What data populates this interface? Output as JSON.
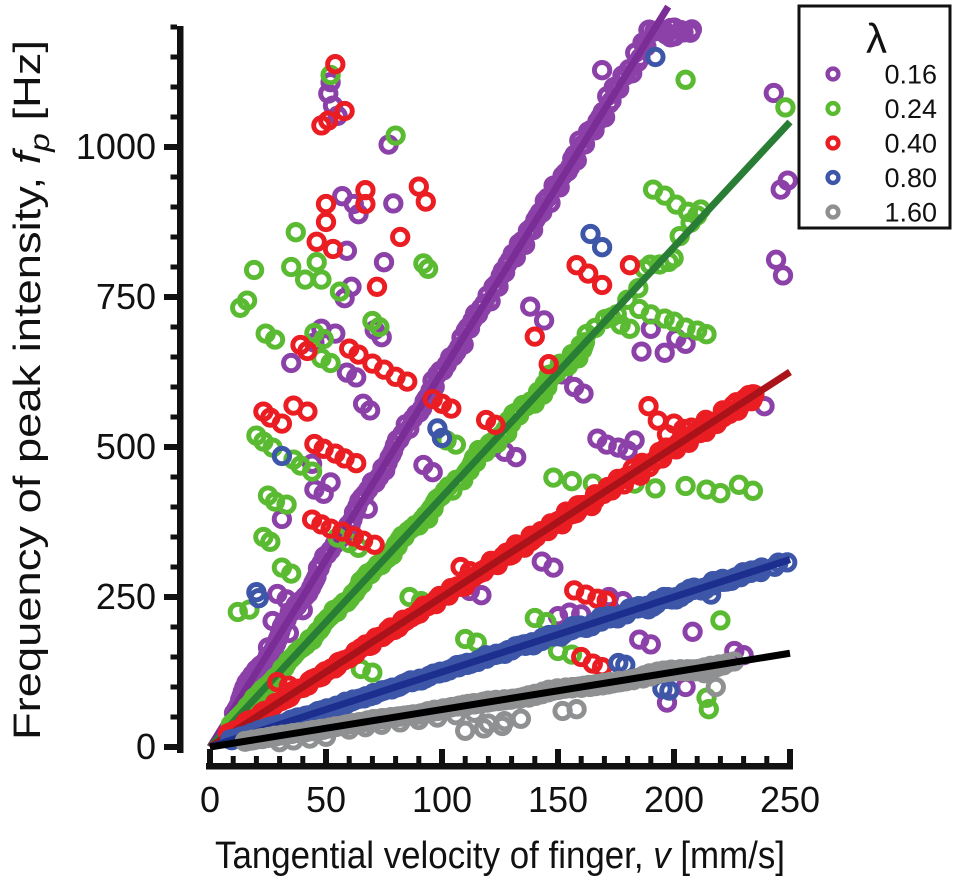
{
  "figure": {
    "background": "#ffffff",
    "text_color": "#111111",
    "axis_color": "#111111"
  },
  "chart_data": {
    "type": "scatter",
    "title": "",
    "xlabel": "Tangential velocity of finger, v [mm/s]",
    "ylabel": "Frequency of peak intensity, fp [Hz]",
    "xlabel_parts": [
      {
        "t": "Tangential velocity of finger, "
      },
      {
        "t": "v",
        "i": true
      },
      {
        "t": " [mm/s]"
      }
    ],
    "ylabel_parts": [
      {
        "t": "Frequency of peak intensity, "
      },
      {
        "t": "f",
        "i": true
      },
      {
        "t": "p",
        "i": true,
        "sub": true
      },
      {
        "t": " [Hz]"
      }
    ],
    "x_axis": {
      "range": [
        0,
        250
      ],
      "major_ticks": [
        0,
        50,
        100,
        150,
        200,
        250
      ],
      "minor_step": 10,
      "grid": false
    },
    "y_axis": {
      "range": [
        0,
        1200
      ],
      "major_ticks": [
        0,
        250,
        500,
        750,
        1000
      ],
      "minor_step": 50,
      "grid": false
    },
    "legend": {
      "title": "λ",
      "position": "top-right",
      "labels": [
        "0.16",
        "0.24",
        "0.40",
        "0.80",
        "1.60"
      ]
    },
    "relationship": "fp = v / lambda (fit lines through origin)",
    "series": [
      {
        "name": "0.16",
        "lambda": 0.16,
        "slope": 6.25,
        "marker_color": "#8B41A8",
        "line_color": "#7A2D96",
        "fit_line": {
          "v0": 0,
          "f0": 0,
          "v1": 197.5,
          "f1": 1234
        },
        "trend_segments": [
          {
            "v0": 9,
            "v1": 190,
            "step": 1.15,
            "spread": 0.011
          },
          {
            "v0": 190.5,
            "v1": 208,
            "step": 1.4,
            "spread": 0.006,
            "f_const": 1193
          }
        ],
        "outliers": [
          [
            52,
            1108
          ],
          [
            51,
            1089
          ],
          [
            53,
            1069
          ],
          [
            55,
            1052
          ],
          [
            57,
            918
          ],
          [
            62,
            905
          ],
          [
            77,
            1004
          ],
          [
            79,
            906
          ],
          [
            64,
            888
          ],
          [
            59,
            827
          ],
          [
            75,
            808
          ],
          [
            61,
            767
          ],
          [
            58,
            748
          ],
          [
            71,
            695
          ],
          [
            74,
            683
          ],
          [
            169,
            1128
          ],
          [
            243,
            1090
          ],
          [
            249,
            944
          ],
          [
            246,
            929
          ],
          [
            244,
            812
          ],
          [
            247,
            786
          ],
          [
            239,
            568
          ],
          [
            138,
            734
          ],
          [
            144,
            711
          ],
          [
            190,
            697
          ],
          [
            196,
            657
          ],
          [
            201,
            681
          ],
          [
            205,
            672
          ],
          [
            186,
            659
          ],
          [
            152,
            621
          ],
          [
            157,
            600
          ],
          [
            161,
            589
          ],
          [
            167,
            514
          ],
          [
            171,
            504
          ],
          [
            176,
            499
          ],
          [
            180,
            494
          ],
          [
            183,
            511
          ],
          [
            100,
            515
          ],
          [
            122,
            500
          ],
          [
            127,
            492
          ],
          [
            132,
            483
          ],
          [
            48,
            697
          ],
          [
            54,
            689
          ],
          [
            45,
            674
          ],
          [
            59,
            624
          ],
          [
            63,
            616
          ],
          [
            66,
            572
          ],
          [
            69,
            561
          ],
          [
            44,
            472
          ],
          [
            52,
            441
          ],
          [
            68,
            397
          ],
          [
            45,
            429
          ],
          [
            49,
            422
          ],
          [
            92,
            470
          ],
          [
            96,
            458
          ],
          [
            143,
            309
          ],
          [
            148,
            299
          ],
          [
            150,
            218
          ],
          [
            155,
            224
          ],
          [
            160,
            221
          ],
          [
            185,
            179
          ],
          [
            190,
            171
          ],
          [
            197,
            74
          ],
          [
            205,
            100
          ],
          [
            208,
            192
          ],
          [
            226,
            160
          ],
          [
            230,
            153
          ],
          [
            172,
            250
          ],
          [
            178,
            243
          ],
          [
            112,
            260
          ],
          [
            117,
            253
          ],
          [
            27,
            210
          ],
          [
            31,
            200
          ],
          [
            34,
            190
          ],
          [
            29,
            255
          ],
          [
            33,
            246
          ],
          [
            37,
            237
          ],
          [
            25,
            166
          ],
          [
            40,
            228
          ],
          [
            35,
            640
          ],
          [
            31,
            380
          ]
        ]
      },
      {
        "name": "0.24",
        "lambda": 0.24,
        "slope": 4.1667,
        "marker_color": "#5ABA31",
        "line_color": "#2A7D35",
        "fit_line": {
          "v0": 0,
          "f0": 0,
          "v1": 250,
          "f1": 1041.7
        },
        "trend_segments": [
          {
            "v0": 9,
            "v1": 162,
            "step": 1.15,
            "spread": 0.014
          },
          {
            "v0": 163,
            "v1": 212,
            "step": 3.4,
            "spread": 0.018
          }
        ],
        "outliers": [
          [
            80,
            1019
          ],
          [
            205,
            1112
          ],
          [
            248,
            1066
          ],
          [
            52,
            1120
          ],
          [
            37,
            858
          ],
          [
            46,
            808
          ],
          [
            35,
            800
          ],
          [
            19,
            795
          ],
          [
            92,
            806
          ],
          [
            94,
            797
          ],
          [
            41,
            779
          ],
          [
            48,
            779
          ],
          [
            56,
            759
          ],
          [
            70,
            710
          ],
          [
            73,
            700
          ],
          [
            45,
            690
          ],
          [
            49,
            680
          ],
          [
            24,
            689
          ],
          [
            28,
            679
          ],
          [
            13,
            732
          ],
          [
            16,
            744
          ],
          [
            191,
            929
          ],
          [
            196,
            919
          ],
          [
            201,
            904
          ],
          [
            206,
            892
          ],
          [
            210,
            886
          ],
          [
            185,
            730
          ],
          [
            190,
            721
          ],
          [
            196,
            714
          ],
          [
            200,
            709
          ],
          [
            205,
            699
          ],
          [
            210,
            694
          ],
          [
            214,
            688
          ],
          [
            177,
            704
          ],
          [
            181,
            697
          ],
          [
            148,
            449
          ],
          [
            156,
            443
          ],
          [
            165,
            439
          ],
          [
            174,
            435
          ],
          [
            183,
            439
          ],
          [
            192,
            431
          ],
          [
            205,
            435
          ],
          [
            214,
            429
          ],
          [
            220,
            423
          ],
          [
            228,
            437
          ],
          [
            234,
            427
          ],
          [
            220,
            211
          ],
          [
            214,
            82
          ],
          [
            215,
            63
          ],
          [
            12,
            225
          ],
          [
            17,
            229
          ],
          [
            31,
            299
          ],
          [
            35,
            289
          ],
          [
            25,
            419
          ],
          [
            28,
            409
          ],
          [
            33,
            404
          ],
          [
            20,
            519
          ],
          [
            23,
            509
          ],
          [
            27,
            499
          ],
          [
            36,
            479
          ],
          [
            39,
            469
          ],
          [
            44,
            459
          ],
          [
            55,
            349
          ],
          [
            60,
            340
          ],
          [
            64,
            332
          ],
          [
            102,
            511
          ],
          [
            106,
            504
          ],
          [
            110,
            180
          ],
          [
            115,
            174
          ],
          [
            150,
            160
          ],
          [
            156,
            154
          ],
          [
            86,
            250
          ],
          [
            91,
            243
          ],
          [
            140,
            215
          ],
          [
            145,
            208
          ],
          [
            65,
            130
          ],
          [
            70,
            124
          ],
          [
            23,
            350
          ],
          [
            26,
            342
          ],
          [
            48,
            648
          ],
          [
            52,
            640
          ]
        ]
      },
      {
        "name": "0.40",
        "lambda": 0.4,
        "slope": 2.5,
        "marker_color": "#EA1D23",
        "line_color": "#A91319",
        "fit_line": {
          "v0": 0,
          "f0": 0,
          "v1": 250,
          "f1": 625
        },
        "trend_segments": [
          {
            "v0": 9,
            "v1": 236,
            "step": 1.05,
            "spread": 0.016
          }
        ],
        "outliers": [
          [
            54,
            1138
          ],
          [
            58,
            1060
          ],
          [
            48,
            1036
          ],
          [
            51,
            1044
          ],
          [
            67,
            928
          ],
          [
            67,
            905
          ],
          [
            50,
            905
          ],
          [
            50,
            875
          ],
          [
            82,
            850
          ],
          [
            46,
            842
          ],
          [
            53,
            830
          ],
          [
            72,
            767
          ],
          [
            90,
            934
          ],
          [
            93,
            909
          ],
          [
            158,
            803
          ],
          [
            163,
            789
          ],
          [
            169,
            770
          ],
          [
            181,
            803
          ],
          [
            140,
            684
          ],
          [
            146,
            638
          ],
          [
            189,
            568
          ],
          [
            193,
            544
          ],
          [
            197,
            521
          ],
          [
            200,
            539
          ],
          [
            204,
            530
          ],
          [
            157,
            261
          ],
          [
            162,
            254
          ],
          [
            167,
            247
          ],
          [
            171,
            244
          ],
          [
            160,
            150
          ],
          [
            165,
            139
          ],
          [
            169,
            133
          ],
          [
            23,
            559
          ],
          [
            26,
            549
          ],
          [
            31,
            539
          ],
          [
            36,
            569
          ],
          [
            42,
            559
          ],
          [
            44,
            379
          ],
          [
            48,
            371
          ],
          [
            52,
            364
          ],
          [
            57,
            359
          ],
          [
            62,
            351
          ],
          [
            66,
            344
          ],
          [
            71,
            337
          ],
          [
            60,
            664
          ],
          [
            64,
            654
          ],
          [
            70,
            639
          ],
          [
            75,
            629
          ],
          [
            80,
            617
          ],
          [
            85,
            609
          ],
          [
            45,
            505
          ],
          [
            49,
            497
          ],
          [
            54,
            489
          ],
          [
            58,
            481
          ],
          [
            63,
            473
          ],
          [
            29,
            108
          ],
          [
            34,
            102
          ],
          [
            96,
            580
          ],
          [
            100,
            572
          ],
          [
            104,
            564
          ],
          [
            119,
            545
          ],
          [
            123,
            537
          ],
          [
            42,
            660
          ],
          [
            39,
            670
          ],
          [
            108,
            300
          ],
          [
            112,
            293
          ]
        ]
      },
      {
        "name": "0.80",
        "lambda": 0.8,
        "slope": 1.25,
        "marker_color": "#3D56A8",
        "line_color": "#1C2E8E",
        "fit_line": {
          "v0": 0,
          "f0": 0,
          "v1": 250,
          "f1": 312.5
        },
        "trend_segments": [
          {
            "v0": 9,
            "v1": 238,
            "step": 0.95,
            "spread": 0.018
          },
          {
            "v0": 239,
            "v1": 249,
            "step": 3.2,
            "spread": 0.01
          }
        ],
        "outliers": [
          [
            164,
            855
          ],
          [
            169,
            833
          ],
          [
            192,
            1150
          ],
          [
            98,
            531
          ],
          [
            100,
            515
          ],
          [
            31,
            485
          ],
          [
            20,
            258
          ],
          [
            21,
            248
          ],
          [
            176,
            140
          ],
          [
            179,
            137
          ],
          [
            195,
            97
          ],
          [
            198,
            94
          ],
          [
            216,
            254
          ]
        ]
      },
      {
        "name": "1.60",
        "lambda": 1.6,
        "slope": 0.625,
        "marker_color": "#8E9091",
        "line_color": "#000000",
        "fit_line": {
          "v0": 0,
          "f0": 0,
          "v1": 250,
          "f1": 156.25
        },
        "trend_segments": [
          {
            "v0": 14,
            "v1": 220,
            "step": 0.9,
            "spread": 0.03
          },
          {
            "v0": 221,
            "v1": 229,
            "step": 2.8,
            "spread": 0.02
          }
        ],
        "outliers": [
          [
            60,
            29
          ],
          [
            67,
            33
          ],
          [
            74,
            37
          ],
          [
            82,
            41
          ],
          [
            90,
            45
          ],
          [
            98,
            49
          ],
          [
            106,
            53
          ],
          [
            114,
            57
          ],
          [
            120,
            39
          ],
          [
            127,
            43
          ],
          [
            134,
            47
          ],
          [
            110,
            27
          ],
          [
            118,
            31
          ],
          [
            126,
            35
          ],
          [
            213,
            123
          ],
          [
            218,
            100
          ],
          [
            30,
            8
          ],
          [
            36,
            11
          ],
          [
            43,
            14
          ],
          [
            50,
            17
          ],
          [
            152,
            60
          ],
          [
            158,
            63
          ]
        ]
      }
    ]
  }
}
